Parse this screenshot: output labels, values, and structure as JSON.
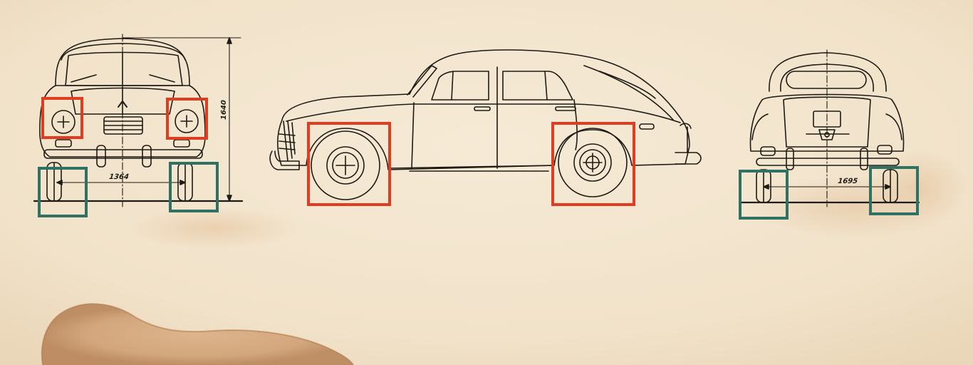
{
  "drawing": {
    "front_view": {
      "width_dimension": "1364",
      "height_dimension": "1640"
    },
    "side_view": {},
    "rear_view": {
      "width_dimension": "1695"
    }
  },
  "annotations": {
    "red_boxes": [
      "front-left-headlight",
      "front-right-headlight",
      "side-front-wheel",
      "side-rear-wheel"
    ],
    "green_boxes": [
      "front-left-wheel",
      "front-right-wheel",
      "rear-left-wheel",
      "rear-right-wheel"
    ]
  },
  "colors": {
    "paper": "#f3e6cf",
    "ink": "#1e1a14",
    "stain": "#c8976a",
    "red_box": "#e23c20",
    "green_box": "#2f7264"
  }
}
